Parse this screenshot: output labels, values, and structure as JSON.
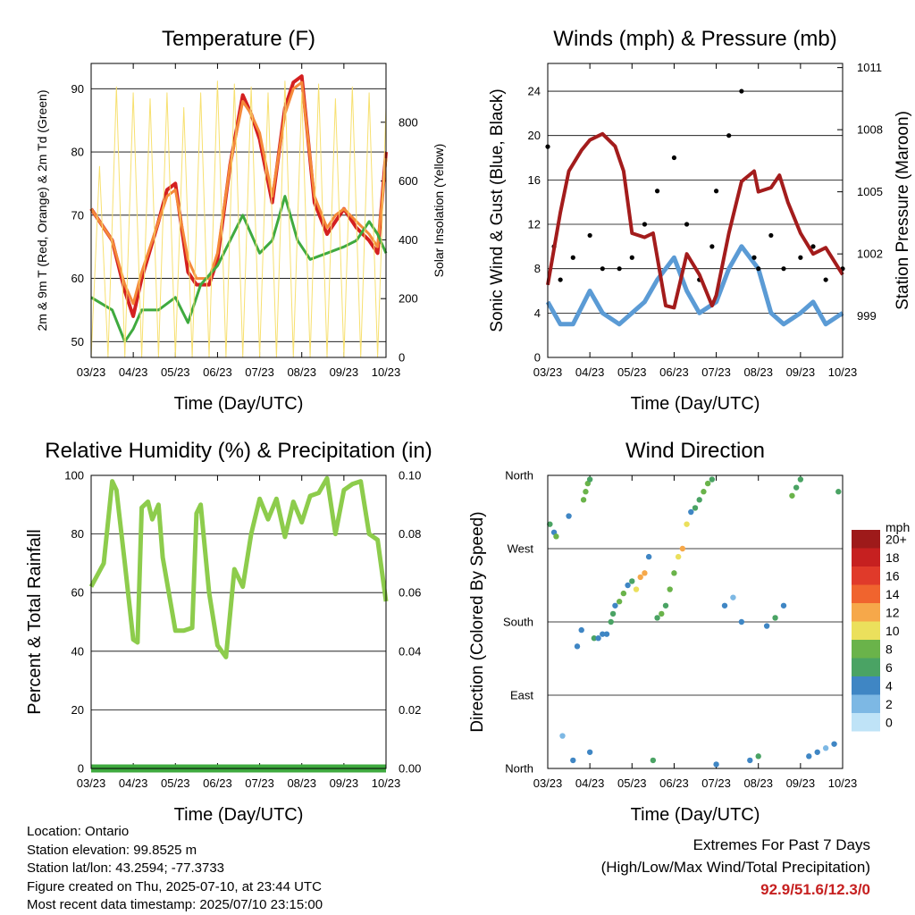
{
  "chart_data": [
    {
      "id": "temp",
      "type": "line",
      "title": "Temperature (F)",
      "xlabel": "Time (Day/UTC)",
      "ylabel": "2m & 9m T (Red, Orange) & 2m Td (Green)",
      "ylabel_right": "Solar Insolation (Yellow)",
      "ylim": [
        47.5,
        94
      ],
      "yticks": [
        50,
        60,
        70,
        80,
        90
      ],
      "ylim_right": [
        0,
        1000
      ],
      "yticks_right": [
        0,
        200,
        400,
        600,
        800
      ],
      "xtick_labels": [
        "03/23",
        "04/23",
        "05/23",
        "06/23",
        "07/23",
        "08/23",
        "09/23",
        "10/23"
      ],
      "colors": {
        "t2m": "#d42020",
        "t9m": "#f58a3a",
        "td": "#3faa3f",
        "solar": "#f7e070"
      },
      "series": [
        {
          "key": "t2m",
          "x": [
            0,
            0.5,
            0.8,
            1,
            1.2,
            1.6,
            1.8,
            2,
            2.3,
            2.5,
            2.8,
            3,
            3.3,
            3.6,
            3.8,
            4,
            4.3,
            4.6,
            4.8,
            5,
            5.3,
            5.6,
            5.8,
            6,
            6.3,
            6.6,
            6.8,
            7
          ],
          "y": [
            71,
            66,
            58,
            54,
            60,
            69,
            74,
            75,
            61,
            59,
            59,
            63,
            78,
            89,
            86,
            82,
            72,
            87,
            91,
            92,
            72,
            67,
            69,
            71,
            68,
            66,
            64,
            80
          ]
        },
        {
          "key": "t9m",
          "x": [
            0,
            0.5,
            0.8,
            1,
            1.2,
            1.6,
            1.8,
            2,
            2.3,
            2.5,
            2.8,
            3,
            3.3,
            3.6,
            3.8,
            4,
            4.3,
            4.6,
            4.8,
            5,
            5.3,
            5.6,
            5.8,
            6,
            6.3,
            6.6,
            6.8,
            7
          ],
          "y": [
            71,
            66,
            59,
            56,
            61,
            69,
            73,
            74,
            63,
            60,
            60,
            64,
            78,
            88,
            86,
            83,
            73,
            86,
            90,
            91,
            73,
            68,
            70,
            71,
            69,
            67,
            65,
            79
          ]
        },
        {
          "key": "td",
          "x": [
            0,
            0.5,
            0.8,
            1,
            1.2,
            1.6,
            2,
            2.3,
            2.6,
            3,
            3.3,
            3.6,
            4,
            4.3,
            4.6,
            4.9,
            5.2,
            5.6,
            6,
            6.3,
            6.6,
            6.8,
            7
          ],
          "y": [
            57,
            55,
            50,
            52,
            55,
            55,
            57,
            53,
            59,
            62,
            66,
            70,
            64,
            66,
            73,
            66,
            63,
            64,
            65,
            66,
            69,
            67,
            64
          ]
        },
        {
          "key": "solar",
          "x": [
            0,
            0.2,
            0.4,
            0.6,
            0.8,
            1,
            1.2,
            1.4,
            1.6,
            1.8,
            2,
            2.2,
            2.4,
            2.6,
            2.8,
            3,
            3.2,
            3.4,
            3.6,
            3.8,
            4,
            4.2,
            4.4,
            4.6,
            4.8,
            5,
            5.2,
            5.4,
            5.6,
            5.8,
            6,
            6.2,
            6.4,
            6.6,
            6.8,
            7
          ],
          "y": [
            0,
            650,
            0,
            920,
            0,
            900,
            0,
            880,
            0,
            900,
            0,
            850,
            0,
            900,
            0,
            940,
            0,
            930,
            0,
            920,
            0,
            900,
            0,
            940,
            0,
            900,
            0,
            930,
            0,
            880,
            0,
            920,
            0,
            900,
            0,
            850
          ]
        }
      ]
    },
    {
      "id": "wind",
      "type": "scatter",
      "title": "Winds (mph) & Pressure (mb)",
      "xlabel": "Time (Day/UTC)",
      "ylabel": "Sonic Wind & Gust (Blue, Black)",
      "ylabel_right": "Station Pressure (Maroon)",
      "ylim": [
        0,
        26.5
      ],
      "yticks": [
        0,
        4,
        8,
        12,
        16,
        20,
        24
      ],
      "ylim_right": [
        997.0,
        1011.2
      ],
      "yticks_right": [
        999,
        1002,
        1005,
        1008,
        1011
      ],
      "xtick_labels": [
        "03/23",
        "04/23",
        "05/23",
        "06/23",
        "07/23",
        "08/23",
        "09/23",
        "10/23"
      ],
      "colors": {
        "wind": "#5b9bd5",
        "gust": "#000000",
        "pressure": "#a31c1c"
      },
      "series": [
        {
          "key": "wind",
          "x": [
            0,
            0.3,
            0.6,
            1,
            1.3,
            1.7,
            2,
            2.3,
            2.6,
            3,
            3.3,
            3.6,
            4,
            4.3,
            4.6,
            5,
            5.3,
            5.6,
            6,
            6.3,
            6.6,
            7
          ],
          "y": [
            5,
            3,
            3,
            6,
            4,
            3,
            4,
            5,
            7,
            9,
            6,
            4,
            5,
            8,
            10,
            8,
            4,
            3,
            4,
            5,
            3,
            4
          ]
        },
        {
          "key": "gust",
          "x": [
            0,
            0.15,
            0.3,
            0.6,
            1,
            1.3,
            1.7,
            2,
            2.3,
            2.6,
            3,
            3.3,
            3.6,
            3.9,
            4,
            4.3,
            4.6,
            4.9,
            5,
            5.3,
            5.6,
            6,
            6.3,
            6.6,
            7
          ],
          "y": [
            19,
            10,
            7,
            9,
            11,
            8,
            8,
            9,
            12,
            15,
            18,
            12,
            7,
            10,
            15,
            20,
            24,
            9,
            8,
            11,
            8,
            9,
            10,
            7,
            8
          ]
        },
        {
          "key": "pressure",
          "x": [
            0,
            0.3,
            0.5,
            0.8,
            1,
            1.3,
            1.6,
            1.8,
            2,
            2.3,
            2.5,
            2.8,
            3,
            3.3,
            3.6,
            3.9,
            4,
            4.3,
            4.6,
            4.9,
            5,
            5.3,
            5.5,
            5.7,
            6,
            6.3,
            6.6,
            7
          ],
          "y": [
            1000.5,
            1004,
            1006,
            1007,
            1007.5,
            1007.8,
            1007.2,
            1006,
            1003,
            1002.8,
            1003,
            999.5,
            999.4,
            1002,
            1001,
            999.5,
            1000,
            1003,
            1005.5,
            1006,
            1005,
            1005.2,
            1005.8,
            1004.5,
            1003,
            1002,
            1002.3,
            1001
          ]
        }
      ]
    },
    {
      "id": "rh",
      "type": "line",
      "title": "Relative Humidity (%) & Precipitation (in)",
      "xlabel": "Time (Day/UTC)",
      "ylabel": "Percent & Total Rainfall",
      "ylim": [
        0,
        100
      ],
      "yticks": [
        0,
        20,
        40,
        60,
        80,
        100
      ],
      "ylim_right": [
        0,
        0.1
      ],
      "yticks_right": [
        "0.00",
        "0.02",
        "0.04",
        "0.06",
        "0.08",
        "0.10"
      ],
      "xtick_labels": [
        "03/23",
        "04/23",
        "05/23",
        "06/23",
        "07/23",
        "08/23",
        "09/23",
        "10/23"
      ],
      "colors": {
        "rh": "#8dcc4c",
        "precip": "#3faa3f"
      },
      "series": [
        {
          "key": "rh",
          "x": [
            0,
            0.3,
            0.5,
            0.6,
            0.8,
            1,
            1.1,
            1.2,
            1.35,
            1.45,
            1.6,
            1.7,
            2,
            2.2,
            2.4,
            2.5,
            2.6,
            2.8,
            3,
            3.2,
            3.4,
            3.6,
            3.8,
            4,
            4.2,
            4.4,
            4.6,
            4.8,
            5,
            5.2,
            5.4,
            5.6,
            5.8,
            6,
            6.2,
            6.4,
            6.6,
            6.8,
            7
          ],
          "y": [
            62,
            70,
            98,
            95,
            70,
            44,
            43,
            89,
            91,
            85,
            90,
            72,
            47,
            47,
            48,
            87,
            90,
            60,
            42,
            38,
            68,
            62,
            80,
            92,
            85,
            92,
            79,
            91,
            84,
            93,
            94,
            99,
            80,
            95,
            97,
            98,
            80,
            78,
            57
          ]
        },
        {
          "key": "precip",
          "x": [
            0,
            7
          ],
          "y": [
            0,
            0
          ]
        }
      ]
    },
    {
      "id": "wdir",
      "type": "scatter",
      "title": "Wind Direction",
      "xlabel": "Time (Day/UTC)",
      "ylabel": "Direction (Colored By Speed)",
      "yticks": [
        "North",
        "East",
        "South",
        "West",
        "North"
      ],
      "xtick_labels": [
        "03/23",
        "04/23",
        "05/23",
        "06/23",
        "07/23",
        "08/23",
        "09/23",
        "10/23"
      ],
      "legend": {
        "unit": "mph",
        "labels": [
          "20+",
          "18",
          "16",
          "14",
          "12",
          "10",
          "8",
          "6",
          "4",
          "2",
          "0"
        ],
        "colors": [
          "#9e1a1a",
          "#c62020",
          "#e03a2a",
          "#f0642e",
          "#f6a84a",
          "#ebe05c",
          "#6ab34a",
          "#4aa364",
          "#3f86c4",
          "#7db8e4",
          "#bfe3f7"
        ],
        "placement": "right"
      },
      "points": [
        [
          0.05,
          300,
          5
        ],
        [
          0.15,
          290,
          4
        ],
        [
          0.2,
          285,
          8
        ],
        [
          0.35,
          40,
          2
        ],
        [
          0.5,
          310,
          3
        ],
        [
          0.6,
          10,
          4
        ],
        [
          0.7,
          150,
          3
        ],
        [
          0.8,
          170,
          4
        ],
        [
          0.85,
          330,
          8
        ],
        [
          0.9,
          340,
          7
        ],
        [
          0.95,
          350,
          8
        ],
        [
          1,
          355,
          5
        ],
        [
          1,
          20,
          4
        ],
        [
          1.1,
          160,
          5
        ],
        [
          1.2,
          160,
          4
        ],
        [
          1.3,
          165,
          4
        ],
        [
          1.4,
          165,
          4
        ],
        [
          1.5,
          180,
          6
        ],
        [
          1.55,
          190,
          6
        ],
        [
          1.6,
          200,
          4
        ],
        [
          1.7,
          205,
          8
        ],
        [
          1.8,
          215,
          7
        ],
        [
          1.9,
          225,
          4
        ],
        [
          2,
          230,
          5
        ],
        [
          2.1,
          220,
          10
        ],
        [
          2.2,
          235,
          12
        ],
        [
          2.3,
          240,
          11
        ],
        [
          2.4,
          260,
          4
        ],
        [
          2.5,
          10,
          6
        ],
        [
          2.6,
          185,
          6
        ],
        [
          2.7,
          190,
          8
        ],
        [
          2.8,
          200,
          5
        ],
        [
          2.9,
          220,
          7
        ],
        [
          3,
          240,
          8
        ],
        [
          3.1,
          260,
          10
        ],
        [
          3.2,
          270,
          12
        ],
        [
          3.3,
          300,
          9
        ],
        [
          3.4,
          315,
          4
        ],
        [
          3.5,
          320,
          5
        ],
        [
          3.6,
          330,
          6
        ],
        [
          3.7,
          340,
          8
        ],
        [
          3.8,
          350,
          7
        ],
        [
          3.9,
          355,
          6
        ],
        [
          4,
          5,
          4
        ],
        [
          4.2,
          200,
          3
        ],
        [
          4.4,
          210,
          2
        ],
        [
          4.6,
          180,
          4
        ],
        [
          4.8,
          10,
          4
        ],
        [
          5,
          15,
          5
        ],
        [
          5.2,
          175,
          4
        ],
        [
          5.4,
          185,
          5
        ],
        [
          5.6,
          200,
          4
        ],
        [
          5.8,
          335,
          8
        ],
        [
          5.9,
          345,
          6
        ],
        [
          6,
          355,
          5
        ],
        [
          6.2,
          15,
          3
        ],
        [
          6.4,
          20,
          4
        ],
        [
          6.6,
          25,
          2
        ],
        [
          6.8,
          30,
          4
        ],
        [
          6.9,
          340,
          5
        ]
      ]
    }
  ],
  "footer": {
    "location": "Location: Ontario",
    "elevation": "Station elevation: 99.8525 m",
    "latlon": "Station lat/lon: 43.2594; -77.3733",
    "created": "Figure created on Thu, 2025-07-10, at 23:44 UTC",
    "recent": "Most recent data timestamp: 2025/07/10 23:15:00"
  },
  "extremes": {
    "title": "Extremes For Past 7 Days",
    "subtitle": "(High/Low/Max Wind/Total Precipitation)",
    "value": "92.9/51.6/12.3/0",
    "value_color": "#c62020"
  }
}
